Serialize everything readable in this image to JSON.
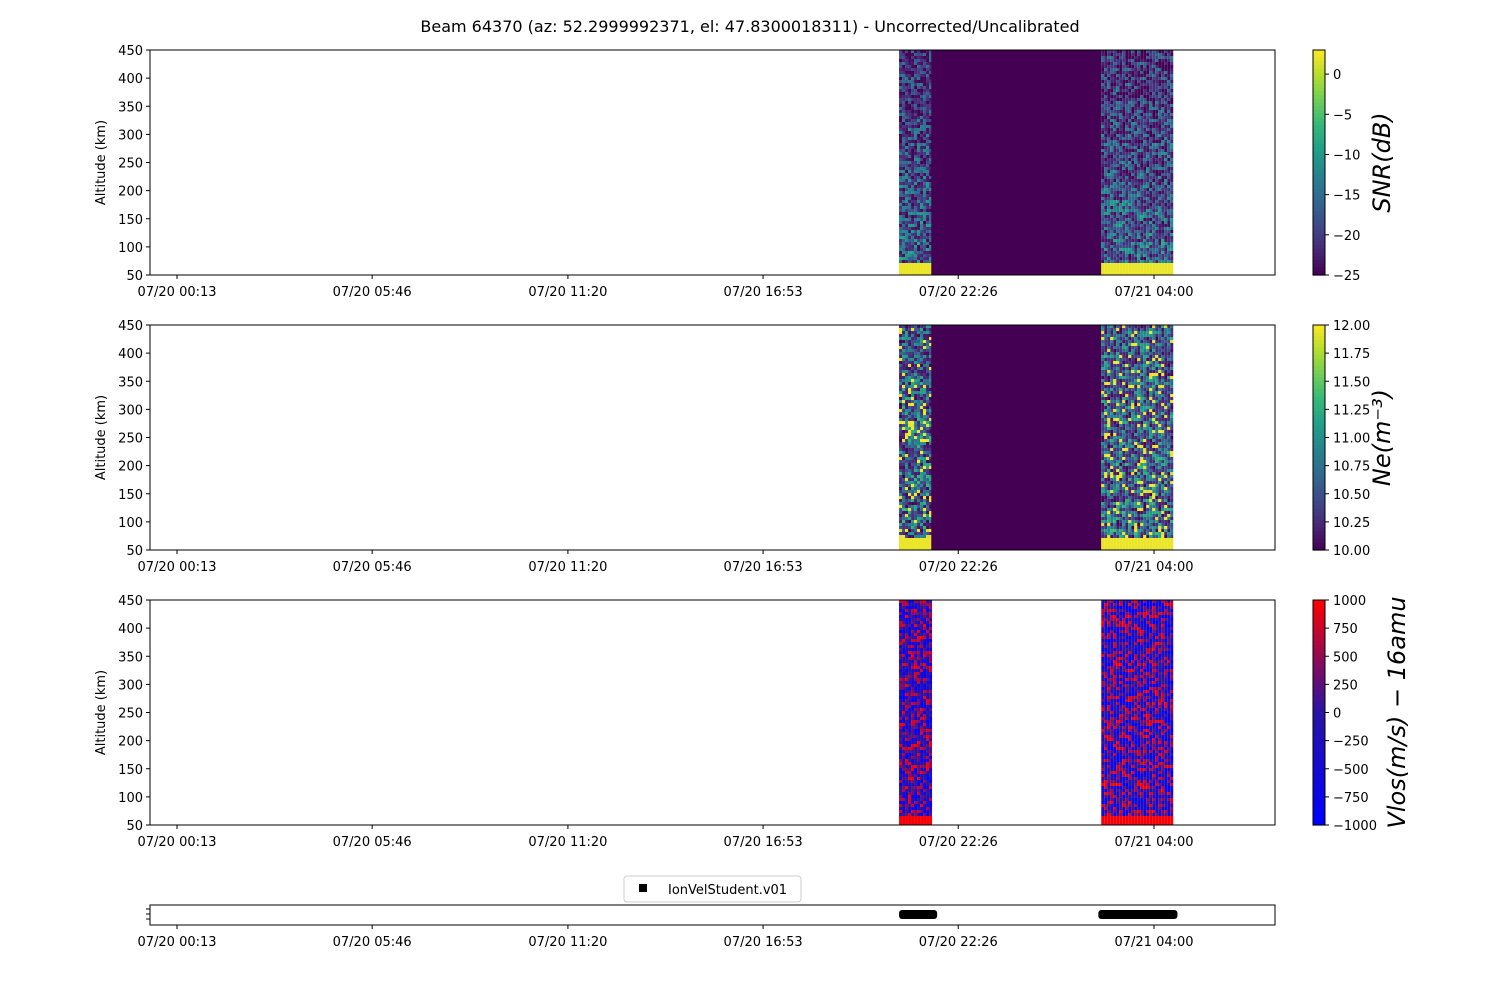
{
  "title": "Beam 64370 (az: 52.2999992371, el: 47.8300018311) - Uncorrected/Uncalibrated",
  "chart_data": [
    {
      "type": "heatmap",
      "ylabel": "Altitude (km)",
      "ylim": [
        50,
        450
      ],
      "yticks": [
        50,
        100,
        150,
        200,
        250,
        300,
        350,
        400,
        450
      ],
      "xtick_labels": [
        "07/20 00:13",
        "07/20 05:46",
        "07/20 11:20",
        "07/20 16:53",
        "07/20 22:26",
        "07/21 04:00"
      ],
      "colorbar": {
        "label": "SNR(dB)",
        "min": -25,
        "max": 3,
        "ticks": [
          0,
          -5,
          -10,
          -15,
          -20,
          -25
        ],
        "colormap": "viridis"
      },
      "data_intervals": [
        {
          "start": "07/20 20:45",
          "end": "07/20 21:40",
          "content": "noisy SNR values, bright low-altitude band"
        },
        {
          "start": "07/20 21:40",
          "end": "07/21 02:30",
          "content": "uniform minimum value"
        },
        {
          "start": "07/21 02:30",
          "end": "07/21 04:30",
          "content": "noisy SNR values, bright low-altitude band"
        }
      ]
    },
    {
      "type": "heatmap",
      "ylabel": "Altitude (km)",
      "ylim": [
        50,
        450
      ],
      "yticks": [
        50,
        100,
        150,
        200,
        250,
        300,
        350,
        400,
        450
      ],
      "xtick_labels": [
        "07/20 00:13",
        "07/20 05:46",
        "07/20 11:20",
        "07/20 16:53",
        "07/20 22:26",
        "07/21 04:00"
      ],
      "colorbar": {
        "label": "Ne(m⁻³)",
        "min": 10.0,
        "max": 12.0,
        "ticks": [
          "12.00",
          "11.75",
          "11.50",
          "11.25",
          "11.00",
          "10.75",
          "10.50",
          "10.25",
          "10.00"
        ],
        "colormap": "viridis"
      },
      "data_intervals": [
        {
          "start": "07/20 20:45",
          "end": "07/20 21:40",
          "content": "noisy Ne values, saturated low-altitude band"
        },
        {
          "start": "07/20 21:40",
          "end": "07/21 02:30",
          "content": "uniform minimum value"
        },
        {
          "start": "07/21 02:30",
          "end": "07/21 04:30",
          "content": "noisy Ne values, saturated low-altitude band"
        }
      ]
    },
    {
      "type": "heatmap",
      "ylabel": "Altitude (km)",
      "ylim": [
        50,
        450
      ],
      "yticks": [
        50,
        100,
        150,
        200,
        250,
        300,
        350,
        400,
        450
      ],
      "xtick_labels": [
        "07/20 00:13",
        "07/20 05:46",
        "07/20 11:20",
        "07/20 16:53",
        "07/20 22:26",
        "07/21 04:00"
      ],
      "colorbar": {
        "label": "Vlos(m/s) − 16amu",
        "min": -1000,
        "max": 1000,
        "ticks": [
          1000,
          750,
          500,
          250,
          0,
          -250,
          -500,
          -750,
          -1000
        ],
        "colormap": "blue-red"
      },
      "data_intervals": [
        {
          "start": "07/20 20:45",
          "end": "07/20 21:40",
          "content": "noisy velocity values"
        },
        {
          "start": "07/21 02:30",
          "end": "07/21 04:30",
          "content": "noisy velocity values"
        }
      ]
    },
    {
      "type": "scatter",
      "legend": [
        "IonVelStudent.v01"
      ],
      "legend_placement": "top-center",
      "xtick_labels": [
        "07/20 00:13",
        "07/20 05:46",
        "07/20 11:20",
        "07/20 16:53",
        "07/20 22:26",
        "07/21 04:00"
      ],
      "marker": "square",
      "marker_color": "#000000",
      "runs": [
        {
          "start": "07/20 20:45",
          "end": "07/20 21:50"
        },
        {
          "start": "07/21 02:25",
          "end": "07/21 04:40"
        }
      ]
    }
  ]
}
